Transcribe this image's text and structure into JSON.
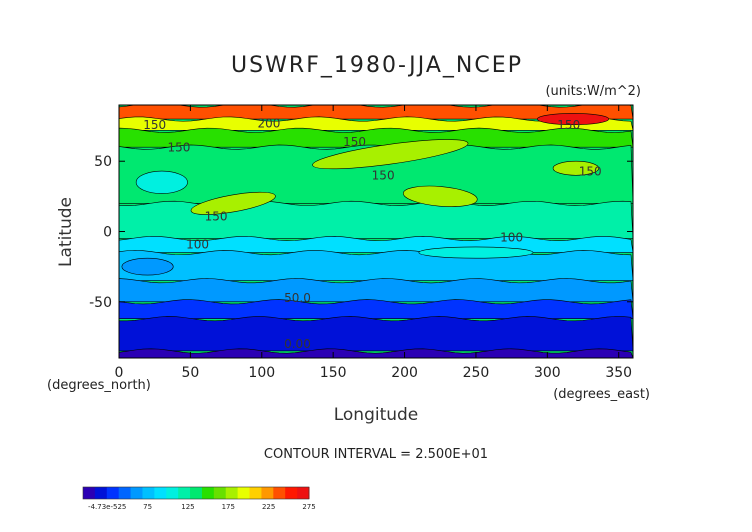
{
  "chart_data": {
    "type": "contour",
    "title": "USWRF_1980-JJA_NCEP",
    "units": "(units:W/m^2)",
    "xlabel": "Longitude",
    "ylabel": "Latitude",
    "x_unit_note": "(degrees_east)",
    "y_unit_note": "(degrees_north)",
    "xlim": [
      0,
      360
    ],
    "ylim": [
      -90,
      90
    ],
    "x_ticks": [
      0,
      50,
      100,
      150,
      200,
      250,
      300,
      350
    ],
    "y_ticks": [
      -50,
      0,
      50
    ],
    "contour_interval_text": "CONTOUR INTERVAL = 2.500E+01",
    "contour_interval": 25,
    "contour_labels": [
      {
        "text": "200",
        "lon": 105,
        "lat": 74
      },
      {
        "text": "150",
        "lon": 25,
        "lat": 73
      },
      {
        "text": "150",
        "lon": 42,
        "lat": 57
      },
      {
        "text": "150",
        "lon": 165,
        "lat": 61
      },
      {
        "text": "150",
        "lon": 185,
        "lat": 37
      },
      {
        "text": "150",
        "lon": 68,
        "lat": 8
      },
      {
        "text": "150",
        "lon": 315,
        "lat": 73
      },
      {
        "text": "150",
        "lon": 330,
        "lat": 40
      },
      {
        "text": "100",
        "lon": 55,
        "lat": -12
      },
      {
        "text": "100",
        "lon": 275,
        "lat": -7
      },
      {
        "text": "50.0",
        "lon": 125,
        "lat": -50
      },
      {
        "text": "0.00",
        "lon": 125,
        "lat": -83
      }
    ],
    "zonal_bands": [
      {
        "lat": [
          80,
          90
        ],
        "value": 237
      },
      {
        "lat": [
          72,
          80
        ],
        "value": 190
      },
      {
        "lat": [
          60,
          72
        ],
        "value": 150
      },
      {
        "lat": [
          20,
          60
        ],
        "value": 137
      },
      {
        "lat": [
          -5,
          20
        ],
        "value": 125
      },
      {
        "lat": [
          -15,
          -5
        ],
        "value": 95
      },
      {
        "lat": [
          -35,
          -15
        ],
        "value": 80
      },
      {
        "lat": [
          -50,
          -35
        ],
        "value": 60
      },
      {
        "lat": [
          -62,
          -50
        ],
        "value": 37
      },
      {
        "lat": [
          -85,
          -62
        ],
        "value": 12
      },
      {
        "lat": [
          -90,
          -85
        ],
        "value": -5
      }
    ],
    "colorbar": {
      "min": -5,
      "max": 275,
      "tick_labels": [
        "-4.73e-525",
        "75",
        "125",
        "175",
        "225",
        "275"
      ],
      "tick_values": [
        25,
        75,
        125,
        175,
        225,
        275
      ],
      "colors": [
        "#2b00b4",
        "#0011d8",
        "#0033ff",
        "#0066ff",
        "#0099ff",
        "#00c0ff",
        "#00e0ff",
        "#00f0e0",
        "#00f0a8",
        "#00e870",
        "#28e000",
        "#68e000",
        "#a8f000",
        "#e8ff00",
        "#ffd000",
        "#ff9800",
        "#ff5000",
        "#ff1800",
        "#ee1111"
      ]
    },
    "grid": false,
    "legend": "bottom-left"
  }
}
